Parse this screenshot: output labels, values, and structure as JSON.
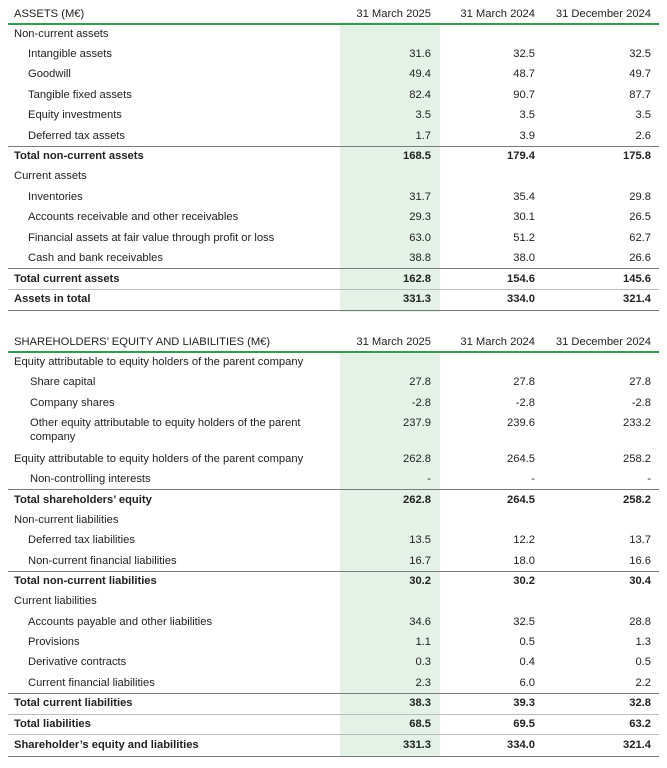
{
  "assets": {
    "header": {
      "title": "ASSETS (M€)",
      "col1": "31 March 2025",
      "col2": "31 March 2024",
      "col3": "31 December 2024"
    },
    "rows": [
      {
        "label": "Non-current assets",
        "v1": "",
        "v2": "",
        "v3": ""
      },
      {
        "label": "Intangible assets",
        "v1": "31.6",
        "v2": "32.5",
        "v3": "32.5"
      },
      {
        "label": "Goodwill",
        "v1": "49.4",
        "v2": "48.7",
        "v3": "49.7"
      },
      {
        "label": "Tangible fixed assets",
        "v1": "82.4",
        "v2": "90.7",
        "v3": "87.7"
      },
      {
        "label": "Equity investments",
        "v1": "3.5",
        "v2": "3.5",
        "v3": "3.5"
      },
      {
        "label": "Deferred tax assets",
        "v1": "1.7",
        "v2": "3.9",
        "v3": "2.6"
      },
      {
        "label": "Total non-current assets",
        "v1": "168.5",
        "v2": "179.4",
        "v3": "175.8"
      },
      {
        "label": "Current assets",
        "v1": "",
        "v2": "",
        "v3": ""
      },
      {
        "label": "Inventories",
        "v1": "31.7",
        "v2": "35.4",
        "v3": "29.8"
      },
      {
        "label": "Accounts receivable and other receivables",
        "v1": "29.3",
        "v2": "30.1",
        "v3": "26.5"
      },
      {
        "label": "Financial assets at fair value through profit or loss",
        "v1": "63.0",
        "v2": "51.2",
        "v3": "62.7"
      },
      {
        "label": "Cash and bank receivables",
        "v1": "38.8",
        "v2": "38.0",
        "v3": "26.6"
      },
      {
        "label": "Total current assets",
        "v1": "162.8",
        "v2": "154.6",
        "v3": "145.6"
      },
      {
        "label": "Assets in total",
        "v1": "331.3",
        "v2": "334.0",
        "v3": "321.4"
      }
    ]
  },
  "liabilities": {
    "header": {
      "title": "SHAREHOLDERS’ EQUITY AND LIABILITIES (M€)",
      "col1": "31 March 2025",
      "col2": "31 March 2024",
      "col3": "31 December 2024"
    },
    "rows": [
      {
        "label": "Equity attributable to equity holders of the parent company",
        "v1": "",
        "v2": "",
        "v3": ""
      },
      {
        "label": "Share capital",
        "v1": "27.8",
        "v2": "27.8",
        "v3": "27.8"
      },
      {
        "label": "Company shares",
        "v1": "-2.8",
        "v2": "-2.8",
        "v3": "-2.8"
      },
      {
        "label": "Other equity attributable to equity holders of the parent company",
        "v1": "237.9",
        "v2": "239.6",
        "v3": "233.2"
      },
      {
        "label": "Equity attributable to equity holders of the parent company",
        "v1": "262.8",
        "v2": "264.5",
        "v3": "258.2"
      },
      {
        "label": "Non-controlling interests",
        "v1": "-",
        "v2": "-",
        "v3": "-"
      },
      {
        "label": "Total shareholders’ equity",
        "v1": "262.8",
        "v2": "264.5",
        "v3": "258.2"
      },
      {
        "label": "Non-current liabilities",
        "v1": "",
        "v2": "",
        "v3": ""
      },
      {
        "label": "Deferred tax liabilities",
        "v1": "13.5",
        "v2": "12.2",
        "v3": "13.7"
      },
      {
        "label": "Non-current financial liabilities",
        "v1": "16.7",
        "v2": "18.0",
        "v3": "16.6"
      },
      {
        "label": "Total non-current liabilities",
        "v1": "30.2",
        "v2": "30.2",
        "v3": "30.4"
      },
      {
        "label": "Current liabilities",
        "v1": "",
        "v2": "",
        "v3": ""
      },
      {
        "label": "Accounts payable and other liabilities",
        "v1": "34.6",
        "v2": "32.5",
        "v3": "28.8"
      },
      {
        "label": "Provisions",
        "v1": "1.1",
        "v2": "0.5",
        "v3": "1.3"
      },
      {
        "label": "Derivative contracts",
        "v1": "0.3",
        "v2": "0.4",
        "v3": "0.5"
      },
      {
        "label": "Current financial liabilities",
        "v1": "2.3",
        "v2": "6.0",
        "v3": "2.2"
      },
      {
        "label": "Total current liabilities",
        "v1": "38.3",
        "v2": "39.3",
        "v3": "32.8"
      },
      {
        "label": "Total liabilities",
        "v1": "68.5",
        "v2": "69.5",
        "v3": "63.2"
      },
      {
        "label": "Shareholder’s equity and liabilities",
        "v1": "331.3",
        "v2": "334.0",
        "v3": "321.4"
      }
    ]
  },
  "colors": {
    "accent_line": "#3a9a55",
    "highlight": "#e3f1e6"
  }
}
